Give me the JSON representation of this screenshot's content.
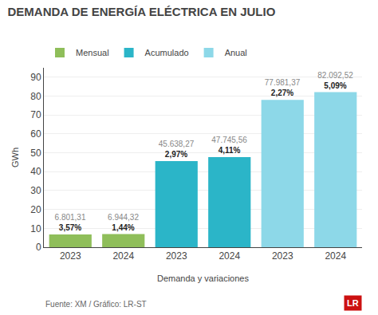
{
  "chart_data": {
    "type": "bar",
    "title": "DEMANDA DE ENERGÍA ELÉCTRICA EN JULIO",
    "xlabel": "Demanda y variaciones",
    "ylabel": "GWh",
    "categories": [
      "2023",
      "2024",
      "2023",
      "2024",
      "2023",
      "2024"
    ],
    "series": [
      {
        "name": "Mensual",
        "color": "#8fbe5a",
        "values": [
          6.80131,
          6.94432,
          null,
          null,
          null,
          null
        ],
        "value_labels": [
          "6.801,31",
          "6.944,32",
          null,
          null,
          null,
          null
        ],
        "variation_labels": [
          "3,57%",
          "1,44%",
          null,
          null,
          null,
          null
        ]
      },
      {
        "name": "Acumulado",
        "color": "#2bb5c8",
        "values": [
          null,
          null,
          45.63827,
          47.74556,
          null,
          null
        ],
        "value_labels": [
          null,
          null,
          "45.638,27",
          "47.745,56",
          null,
          null
        ],
        "variation_labels": [
          null,
          null,
          "2,97%",
          "4,11%",
          null,
          null
        ]
      },
      {
        "name": "Anual",
        "color": "#8dd8e8",
        "values": [
          null,
          null,
          null,
          null,
          77.98137,
          82.09252
        ],
        "value_labels": [
          null,
          null,
          null,
          null,
          "77.981,37",
          "82.092,52"
        ],
        "variation_labels": [
          null,
          null,
          null,
          null,
          "2,27%",
          "5,09%"
        ]
      }
    ],
    "ylim": [
      0,
      95
    ],
    "yticks": [
      0,
      10,
      20,
      30,
      40,
      50,
      60,
      70,
      80,
      90
    ],
    "grid": true,
    "legend": "top",
    "data_labels": true,
    "annotations": [
      {
        "text": "Fuente: XM / Gráfico: LR-ST"
      },
      {
        "text": "LR",
        "color": "#cc1111"
      }
    ]
  }
}
